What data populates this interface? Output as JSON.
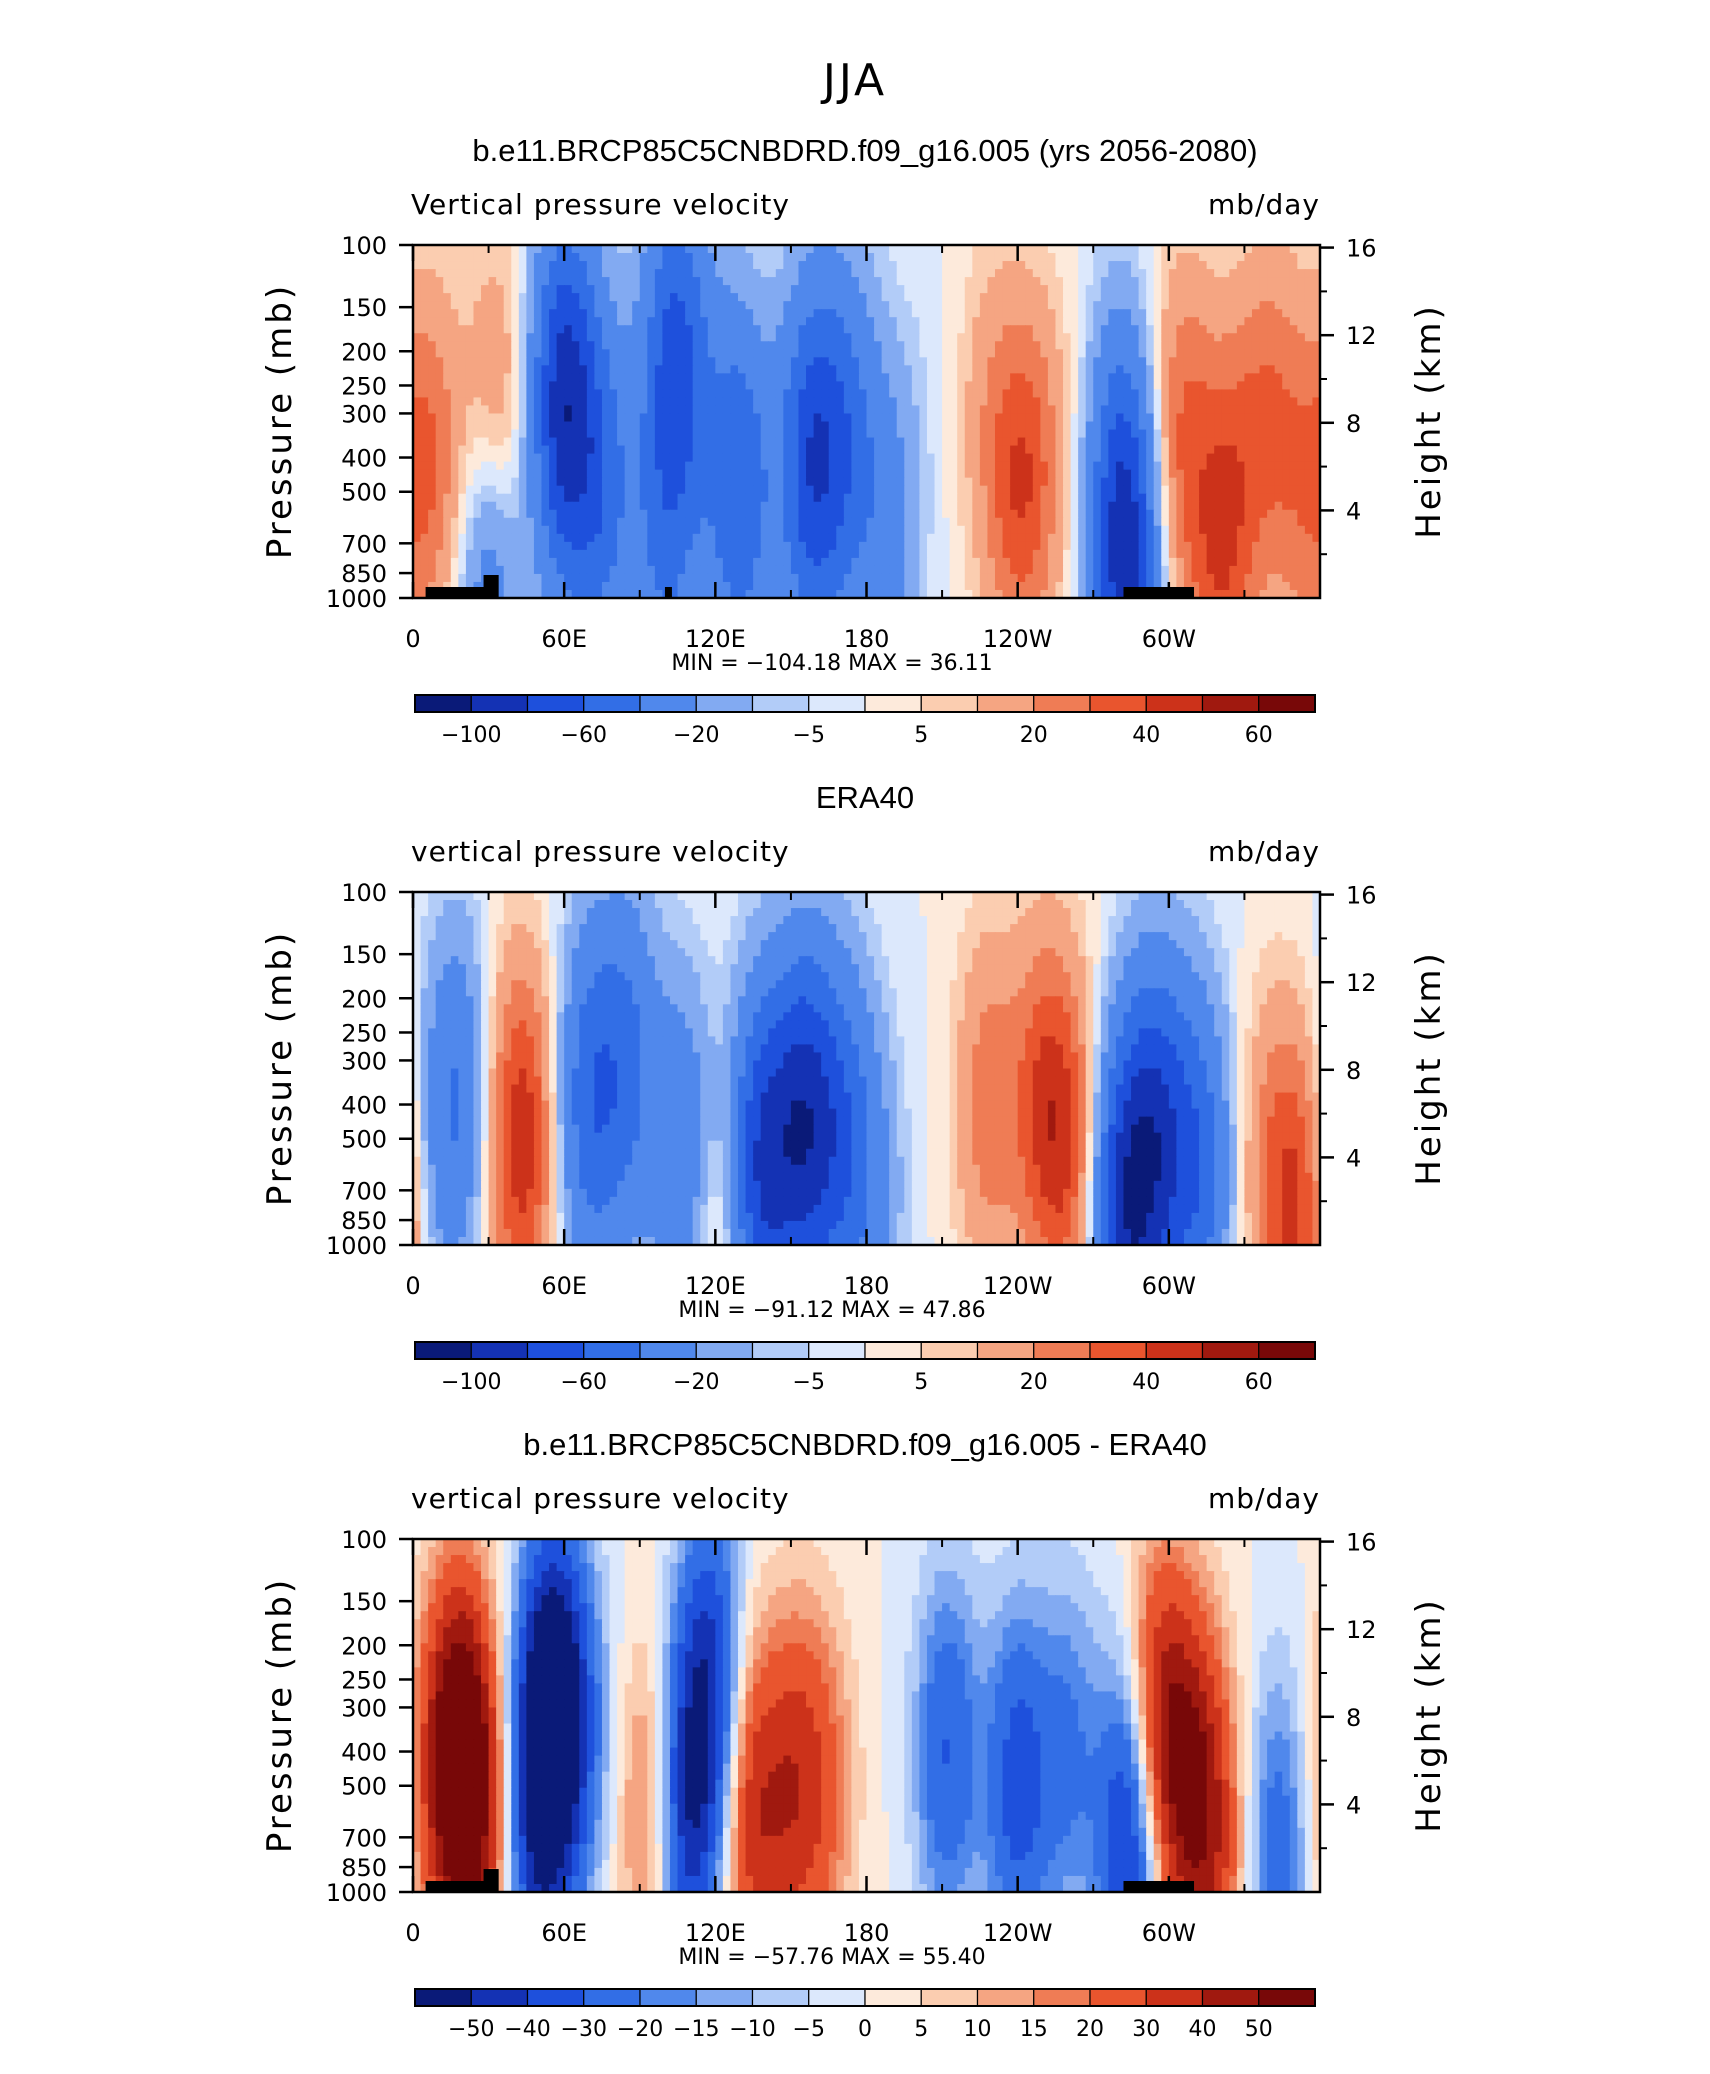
{
  "figure_title": "JJA",
  "colorbar_colors_main": [
    "#0a1a78",
    "#1432b4",
    "#1e50dc",
    "#326ee6",
    "#5088ec",
    "#82aaf2",
    "#b2ccf8",
    "#dce8fc",
    "#fdeadb",
    "#fbcdb0",
    "#f5a582",
    "#ef7c55",
    "#e9552e",
    "#cc321a",
    "#a0190f",
    "#780808"
  ],
  "colorbar_colors_diff": [
    "#0a1a78",
    "#1432b4",
    "#1e50dc",
    "#326ee6",
    "#5088ec",
    "#82aaf2",
    "#b2ccf8",
    "#dce8fc",
    "#fdeadb",
    "#fbcdb0",
    "#f5a582",
    "#ef7c55",
    "#e9552e",
    "#cc321a",
    "#a0190f",
    "#780808"
  ],
  "panels": [
    {
      "title": "b.e11.BRCP85C5CNBDRD.f09_g16.005 (yrs 2056-2080)",
      "left_label": "Vertical pressure velocity",
      "right_label": "mb/day",
      "y_title": "Pressure (mb)",
      "y2_title": "Height (km)",
      "minmax": "MIN = −104.18   MAX =   36.11",
      "colorbar_labels": [
        "−100",
        "−60",
        "−20",
        "−5",
        "5",
        "20",
        "40",
        "60"
      ]
    },
    {
      "title": "ERA40",
      "left_label": "vertical pressure velocity",
      "right_label": "mb/day",
      "y_title": "Pressure (mb)",
      "y2_title": "Height (km)",
      "minmax": "MIN = −91.12   MAX =   47.86",
      "colorbar_labels": [
        "−100",
        "−60",
        "−20",
        "−5",
        "5",
        "20",
        "40",
        "60"
      ]
    },
    {
      "title": "b.e11.BRCP85C5CNBDRD.f09_g16.005 - ERA40",
      "left_label": "vertical pressure velocity",
      "right_label": "mb/day",
      "y_title": "Pressure (mb)",
      "y2_title": "Height (km)",
      "minmax": "MIN = −57.76   MAX =   55.40",
      "colorbar_labels": [
        "−50",
        "−40",
        "−30",
        "−20",
        "−15",
        "−10",
        "−5",
        "0",
        "5",
        "10",
        "15",
        "20",
        "30",
        "40",
        "50"
      ]
    }
  ],
  "chart_data": [
    {
      "type": "heatmap",
      "title": "b.e11.BRCP85C5CNBDRD.f09_g16.005 (yrs 2056-2080)",
      "xlabel": "",
      "ylabel": "Pressure (mb)",
      "y2label": "Height (km)",
      "x_ticks": [
        "0",
        "60E",
        "120E",
        "180",
        "120W",
        "60W"
      ],
      "y_ticks": [
        "100",
        "150",
        "200",
        "250",
        "300",
        "400",
        "500",
        "700",
        "850",
        "1000"
      ],
      "y2_ticks": [
        "4",
        "8",
        "12",
        "16"
      ],
      "levels": [
        -120,
        -100,
        -80,
        -60,
        -40,
        -20,
        -10,
        -5,
        0,
        5,
        10,
        20,
        30,
        40,
        50,
        60
      ],
      "min": -104.18,
      "max": 36.11,
      "features": [
        {
          "lon": 8,
          "p": 400,
          "value": 25
        },
        {
          "lon": 33,
          "p": 350,
          "value": 30
        },
        {
          "lon": 31,
          "p": 800,
          "value": -40
        },
        {
          "lon": 60,
          "p": 280,
          "value": -90
        },
        {
          "lon": 75,
          "p": 500,
          "value": -45
        },
        {
          "lon": 100,
          "p": 700,
          "value": -35
        },
        {
          "lon": 104,
          "p": 200,
          "value": -60
        },
        {
          "lon": 118,
          "p": 300,
          "value": -10
        },
        {
          "lon": 130,
          "p": 500,
          "value": -55
        },
        {
          "lon": 158,
          "p": 420,
          "value": -70
        },
        {
          "lon": 172,
          "p": 350,
          "value": -40
        },
        {
          "lon": 188,
          "p": 650,
          "value": -25
        },
        {
          "lon": 200,
          "p": 300,
          "value": -3
        },
        {
          "lon": 240,
          "p": 500,
          "value": 30
        },
        {
          "lon": 228,
          "p": 300,
          "value": 12
        },
        {
          "lon": 250,
          "p": 400,
          "value": 15
        },
        {
          "lon": 283,
          "p": 800,
          "value": -80
        },
        {
          "lon": 280,
          "p": 400,
          "value": -25
        },
        {
          "lon": 305,
          "p": 350,
          "value": 30
        },
        {
          "lon": 325,
          "p": 450,
          "value": 20
        },
        {
          "lon": 340,
          "p": 300,
          "value": 25
        },
        {
          "lon": 355,
          "p": 500,
          "value": 20
        },
        {
          "lon": 320,
          "p": 900,
          "value": 25
        }
      ]
    },
    {
      "type": "heatmap",
      "title": "ERA40",
      "xlabel": "",
      "ylabel": "Pressure (mb)",
      "y2label": "Height (km)",
      "x_ticks": [
        "0",
        "60E",
        "120E",
        "180",
        "120W",
        "60W"
      ],
      "y_ticks": [
        "100",
        "150",
        "200",
        "250",
        "300",
        "400",
        "500",
        "700",
        "850",
        "1000"
      ],
      "y2_ticks": [
        "4",
        "8",
        "12",
        "16"
      ],
      "levels": [
        -120,
        -100,
        -80,
        -60,
        -40,
        -20,
        -10,
        -5,
        0,
        5,
        10,
        20,
        30,
        40,
        50,
        60
      ],
      "min": -91.12,
      "max": 47.86,
      "features": [
        {
          "lon": 18,
          "p": 400,
          "value": -40
        },
        {
          "lon": 8,
          "p": 500,
          "value": -10
        },
        {
          "lon": 44,
          "p": 500,
          "value": 45
        },
        {
          "lon": 30,
          "p": 500,
          "value": 10
        },
        {
          "lon": 70,
          "p": 400,
          "value": -50
        },
        {
          "lon": 85,
          "p": 300,
          "value": -40
        },
        {
          "lon": 108,
          "p": 600,
          "value": -45
        },
        {
          "lon": 118,
          "p": 900,
          "value": 25
        },
        {
          "lon": 138,
          "p": 600,
          "value": -75
        },
        {
          "lon": 155,
          "p": 450,
          "value": -80
        },
        {
          "lon": 170,
          "p": 500,
          "value": -45
        },
        {
          "lon": 182,
          "p": 700,
          "value": -20
        },
        {
          "lon": 228,
          "p": 400,
          "value": 25
        },
        {
          "lon": 250,
          "p": 400,
          "value": 35
        },
        {
          "lon": 262,
          "p": 550,
          "value": 30
        },
        {
          "lon": 282,
          "p": 800,
          "value": -80
        },
        {
          "lon": 295,
          "p": 500,
          "value": -70
        },
        {
          "lon": 312,
          "p": 600,
          "value": -50
        },
        {
          "lon": 340,
          "p": 600,
          "value": 20
        },
        {
          "lon": 352,
          "p": 800,
          "value": 35
        }
      ]
    },
    {
      "type": "heatmap",
      "title": "b.e11.BRCP85C5CNBDRD.f09_g16.005 - ERA40",
      "xlabel": "",
      "ylabel": "Pressure (mb)",
      "y2label": "Height (km)",
      "x_ticks": [
        "0",
        "60E",
        "120E",
        "180",
        "120W",
        "60W"
      ],
      "y_ticks": [
        "100",
        "150",
        "200",
        "250",
        "300",
        "400",
        "500",
        "700",
        "850",
        "1000"
      ],
      "y2_ticks": [
        "4",
        "8",
        "12",
        "16"
      ],
      "levels": [
        -60,
        -50,
        -40,
        -30,
        -20,
        -15,
        -10,
        -5,
        0,
        5,
        10,
        15,
        20,
        30,
        40,
        50
      ],
      "min": -57.76,
      "max": 55.4,
      "features": [
        {
          "lon": 18,
          "p": 380,
          "value": 52
        },
        {
          "lon": 25,
          "p": 600,
          "value": 35
        },
        {
          "lon": 8,
          "p": 500,
          "value": 15
        },
        {
          "lon": 55,
          "p": 280,
          "value": -57
        },
        {
          "lon": 50,
          "p": 600,
          "value": -40
        },
        {
          "lon": 66,
          "p": 350,
          "value": -20
        },
        {
          "lon": 95,
          "p": 600,
          "value": 25
        },
        {
          "lon": 108,
          "p": 600,
          "value": -45
        },
        {
          "lon": 118,
          "p": 250,
          "value": -40
        },
        {
          "lon": 135,
          "p": 600,
          "value": 35
        },
        {
          "lon": 152,
          "p": 500,
          "value": 30
        },
        {
          "lon": 165,
          "p": 500,
          "value": 15
        },
        {
          "lon": 212,
          "p": 400,
          "value": -30
        },
        {
          "lon": 240,
          "p": 500,
          "value": -35
        },
        {
          "lon": 260,
          "p": 400,
          "value": -20
        },
        {
          "lon": 285,
          "p": 700,
          "value": -50
        },
        {
          "lon": 296,
          "p": 350,
          "value": 45
        },
        {
          "lon": 310,
          "p": 500,
          "value": 40
        },
        {
          "lon": 320,
          "p": 800,
          "value": 20
        },
        {
          "lon": 343,
          "p": 750,
          "value": -25
        }
      ]
    }
  ]
}
